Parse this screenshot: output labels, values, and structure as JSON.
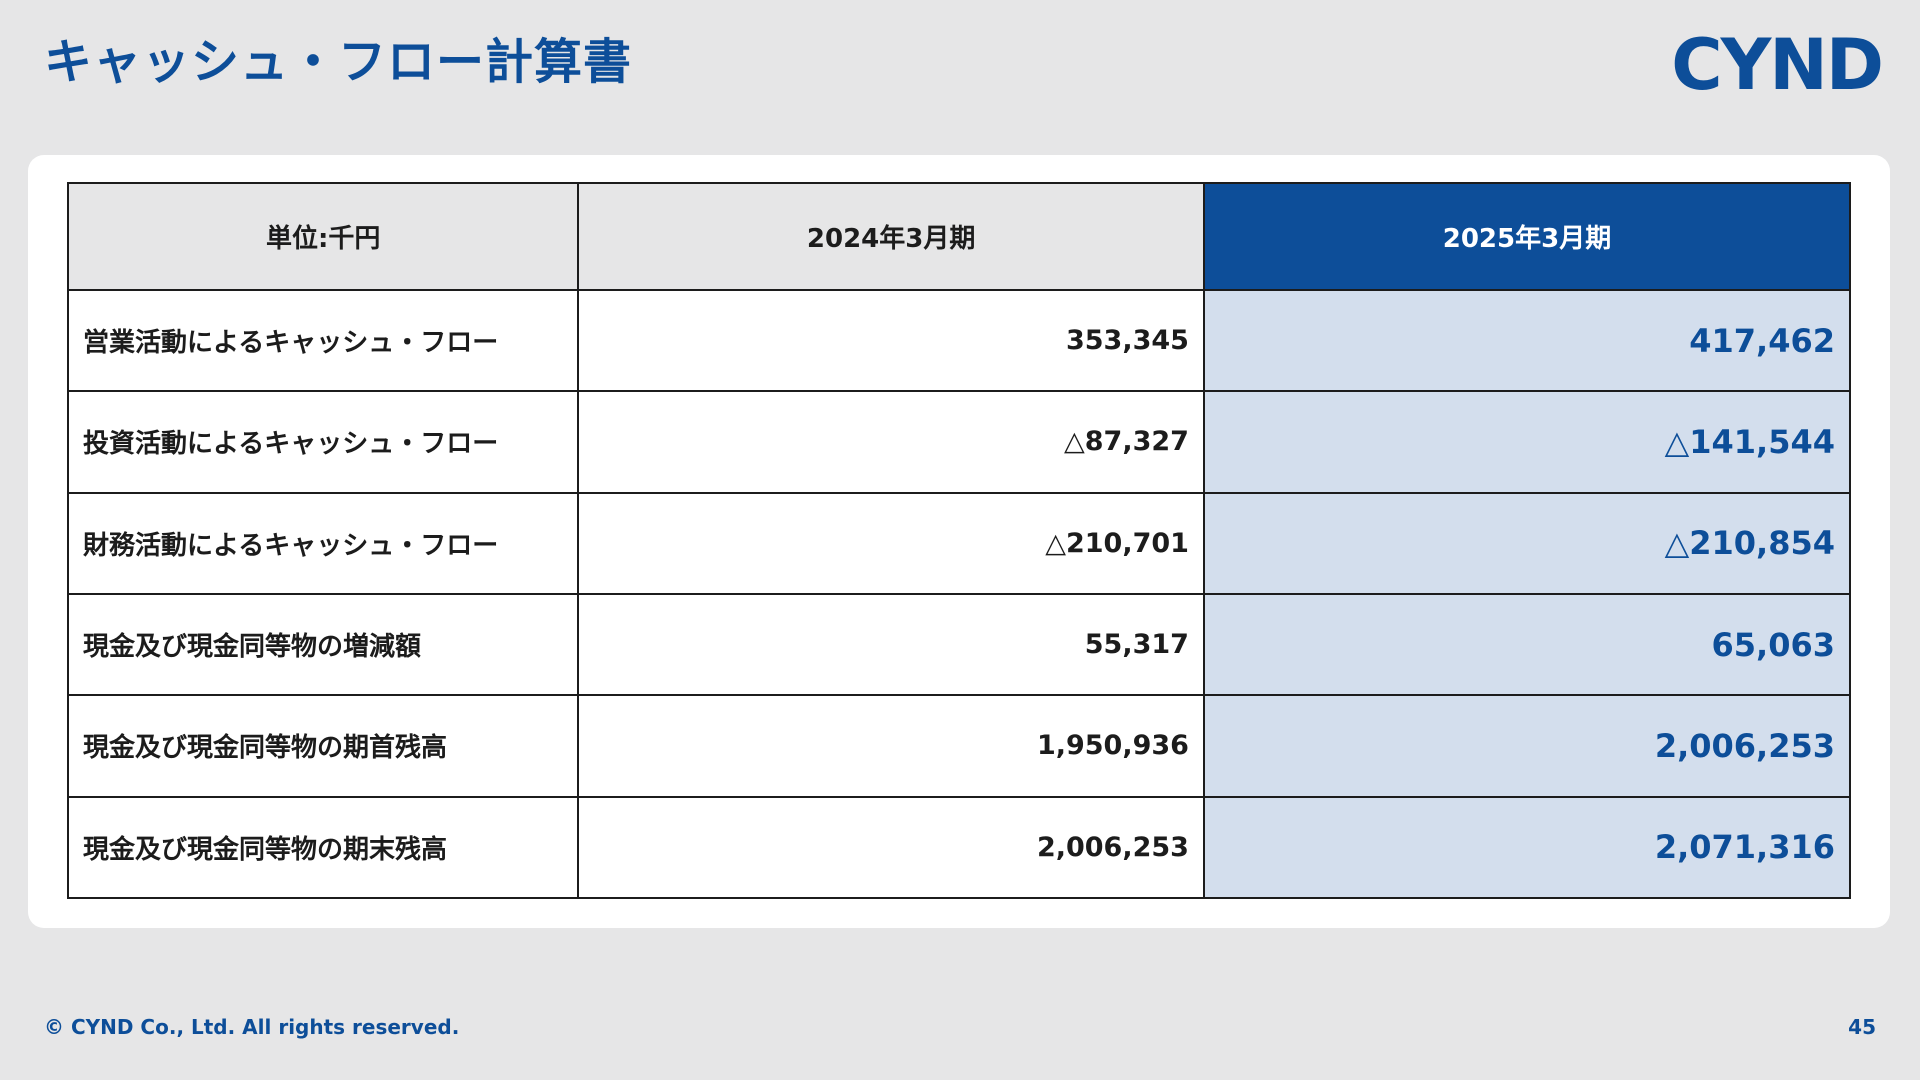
{
  "header": {
    "title": "キャッシュ・フロー計算書",
    "logo_text": "CYND"
  },
  "table": {
    "headers": [
      "単位:千円",
      "2024年3月期",
      "2025年3月期"
    ],
    "rows": [
      {
        "label": "営業活動によるキャッシュ・フロー",
        "fy2024": "353,345",
        "fy2025": "417,462"
      },
      {
        "label": "投資活動によるキャッシュ・フロー",
        "fy2024": "△87,327",
        "fy2025": "△141,544"
      },
      {
        "label": "財務活動によるキャッシュ・フロー",
        "fy2024": "△210,701",
        "fy2025": "△210,854"
      },
      {
        "label": "現金及び現金同等物の増減額",
        "fy2024": "55,317",
        "fy2025": "65,063"
      },
      {
        "label": "現金及び現金同等物の期首残高",
        "fy2024": "1,950,936",
        "fy2025": "2,006,253"
      },
      {
        "label": "現金及び現金同等物の期末残高",
        "fy2024": "2,006,253",
        "fy2025": "2,071,316"
      }
    ]
  },
  "footer": {
    "copyright": "© CYND Co., Ltd. All rights reserved.",
    "page_number": "45"
  },
  "colors": {
    "brand_blue": "#0d4e99",
    "highlight_column": "#d3deed",
    "background": "#e6e6e7"
  }
}
